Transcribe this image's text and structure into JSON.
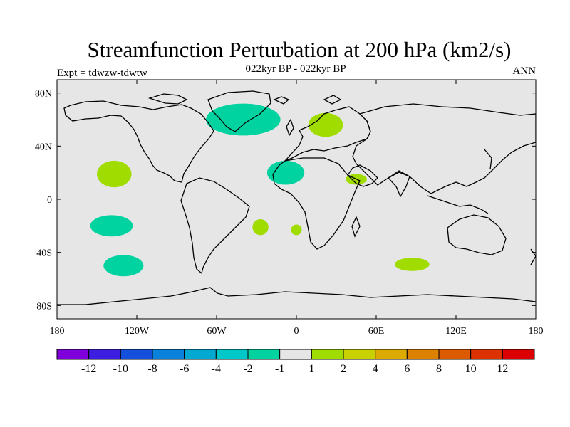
{
  "title": "Streamfunction Perturbation at 200 hPa (km2/s)",
  "subtitle": "022kyr BP - 022kyr BP",
  "left_label": "Expt = tdwzw-tdwtw",
  "right_label": "ANN",
  "map": {
    "projection": "cylindrical equidistant",
    "lon_range": [
      -180,
      180
    ],
    "lat_range": [
      -90,
      90
    ],
    "background_color": "#e6e6e6",
    "coastline_color": "#000000",
    "x_ticks": [
      {
        "lon": -180,
        "label": "180"
      },
      {
        "lon": -120,
        "label": "120W"
      },
      {
        "lon": -60,
        "label": "60W"
      },
      {
        "lon": 0,
        "label": "0"
      },
      {
        "lon": 60,
        "label": "60E"
      },
      {
        "lon": 120,
        "label": "120E"
      },
      {
        "lon": 180,
        "label": "180"
      }
    ],
    "y_ticks": [
      {
        "lat": 80,
        "label": "80N"
      },
      {
        "lat": 40,
        "label": "40N"
      },
      {
        "lat": 0,
        "label": "0"
      },
      {
        "lat": -40,
        "label": "40S"
      },
      {
        "lat": -80,
        "label": "80S"
      }
    ],
    "anomaly_regions": [
      {
        "name": "north-atlantic",
        "lon": -40,
        "lat": 60,
        "rlon": 28,
        "rlat": 12,
        "category": "-2..-1",
        "color": "#00d2a0"
      },
      {
        "name": "europe",
        "lon": 22,
        "lat": 56,
        "rlon": 13,
        "rlat": 9,
        "category": "1..2",
        "color": "#a0dc00"
      },
      {
        "name": "north-pacific",
        "lon": -137,
        "lat": 19,
        "rlon": 13,
        "rlat": 10,
        "category": "1..2",
        "color": "#a0dc00"
      },
      {
        "name": "tropical-atlantic",
        "lon": -8,
        "lat": 20,
        "rlon": 14,
        "rlat": 9,
        "category": "-2..-1",
        "color": "#00d2a0"
      },
      {
        "name": "arabian-sea",
        "lon": 45,
        "lat": 15,
        "rlon": 8,
        "rlat": 4,
        "category": "1..2",
        "color": "#a0dc00"
      },
      {
        "name": "south-pacific-west",
        "lon": -139,
        "lat": -20,
        "rlon": 16,
        "rlat": 8,
        "category": "-2..-1",
        "color": "#00d2a0"
      },
      {
        "name": "south-atlantic-west",
        "lon": -27,
        "lat": -21,
        "rlon": 6,
        "rlat": 6,
        "category": "1..2",
        "color": "#a0dc00"
      },
      {
        "name": "south-atlantic-east",
        "lon": 0,
        "lat": -23,
        "rlon": 4,
        "rlat": 4,
        "category": "1..2",
        "color": "#a0dc00"
      },
      {
        "name": "south-pacific-south",
        "lon": -130,
        "lat": -50,
        "rlon": 15,
        "rlat": 8,
        "category": "-2..-1",
        "color": "#00d2a0"
      },
      {
        "name": "indian-ocean-south",
        "lon": 87,
        "lat": -49,
        "rlon": 13,
        "rlat": 5,
        "category": "1..2",
        "color": "#a0dc00"
      }
    ]
  },
  "colorbar": {
    "colors": [
      "#8000dc",
      "#3c1ee0",
      "#1450dc",
      "#0a82dc",
      "#00a8d2",
      "#00c8c8",
      "#00d2a0",
      "#e6e6e6",
      "#a0dc00",
      "#c8d200",
      "#dcaa00",
      "#dc8200",
      "#dc5a00",
      "#dc3200",
      "#dc0000"
    ],
    "labels": [
      "-12",
      "-10",
      "-8",
      "-6",
      "-4",
      "-2",
      "-1",
      "1",
      "2",
      "4",
      "6",
      "8",
      "10",
      "12"
    ]
  }
}
